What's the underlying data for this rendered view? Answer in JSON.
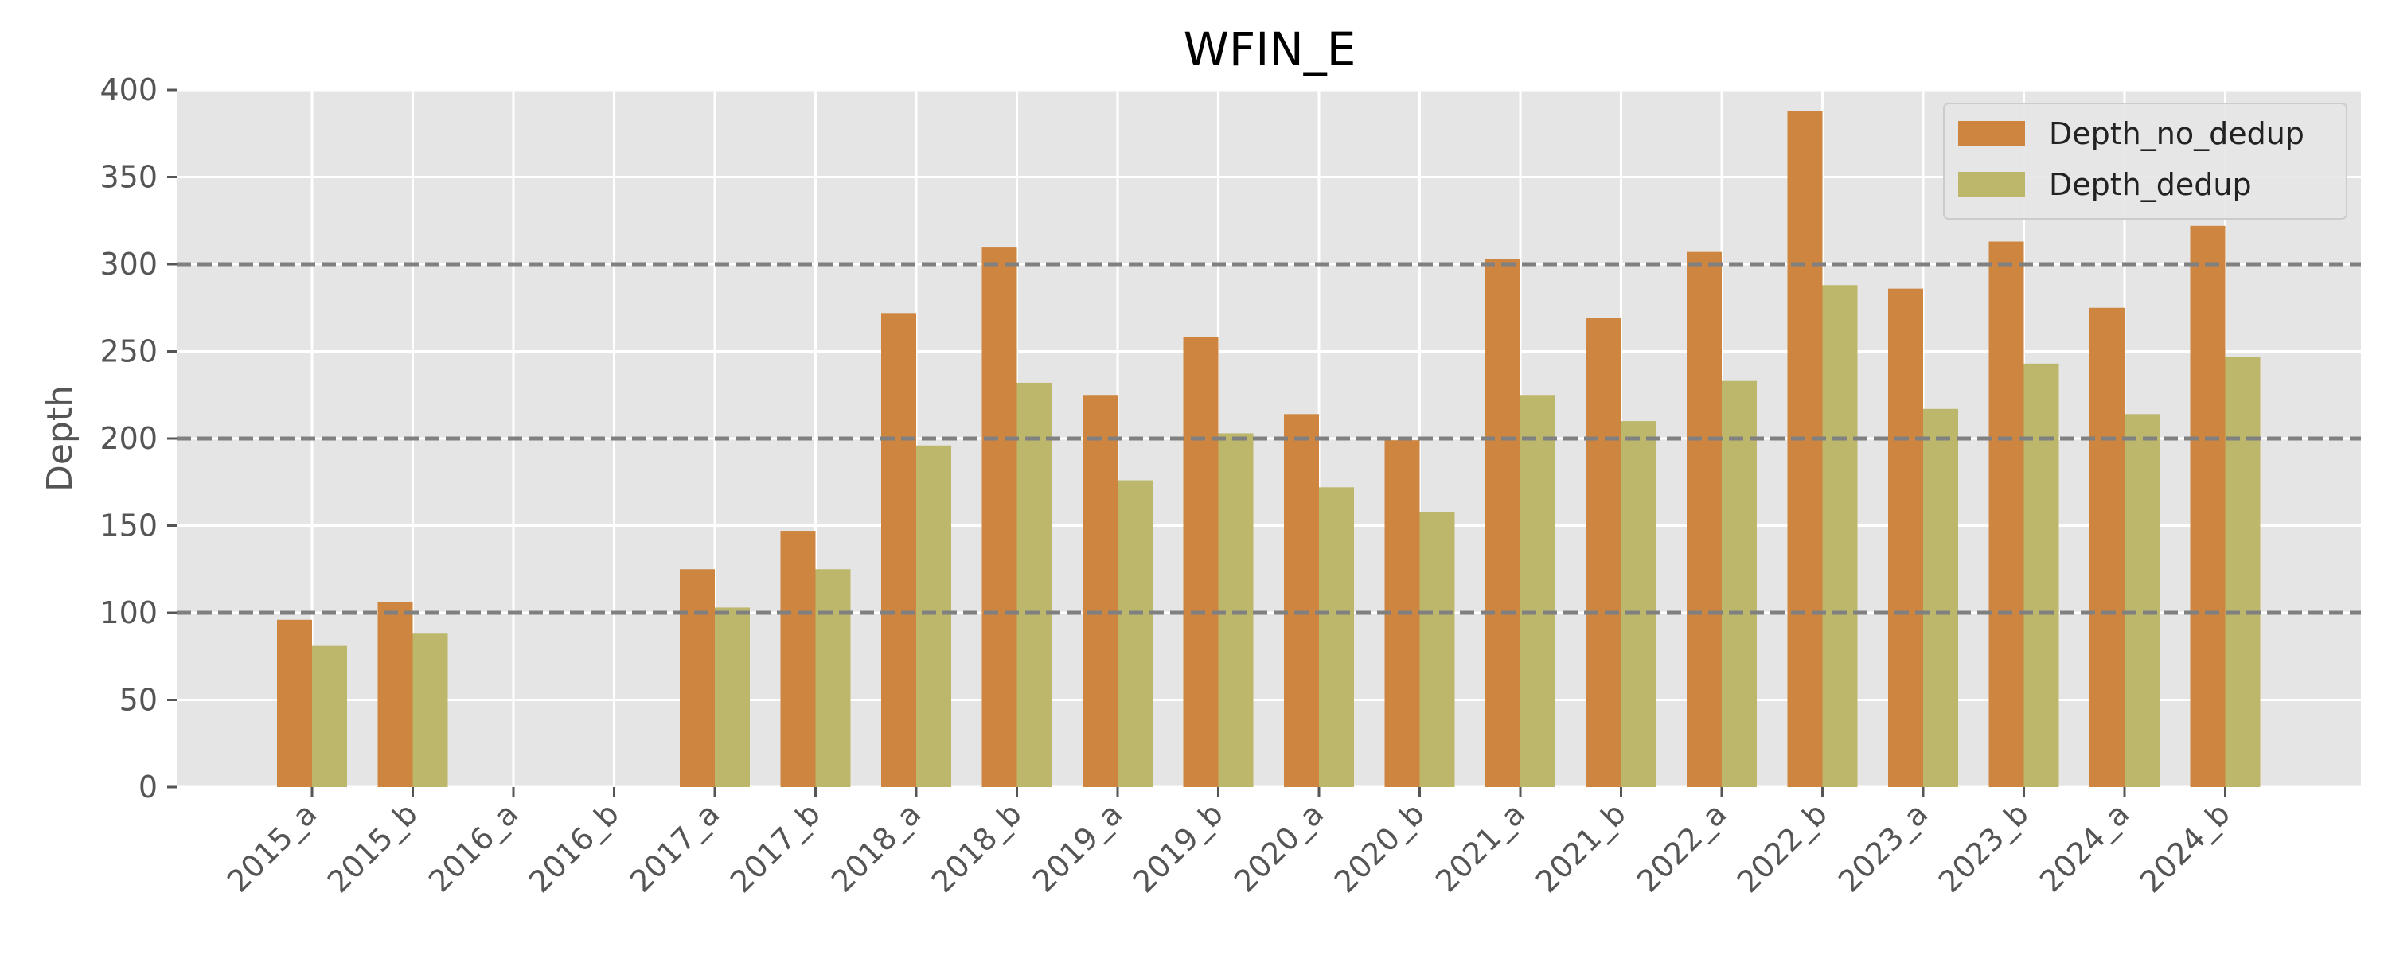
{
  "chart_data": {
    "type": "bar",
    "title": "WFIN_E",
    "xlabel": "",
    "ylabel": "Depth",
    "ylim": [
      0,
      400
    ],
    "yticks": [
      0,
      50,
      100,
      150,
      200,
      250,
      300,
      350,
      400
    ],
    "grid": true,
    "legend_position": "top-right",
    "reference_lines": [
      100,
      200,
      300
    ],
    "categories": [
      "2015_a",
      "2015_b",
      "2016_a",
      "2016_b",
      "2017_a",
      "2017_b",
      "2018_a",
      "2018_b",
      "2019_a",
      "2019_b",
      "2020_a",
      "2020_b",
      "2021_a",
      "2021_b",
      "2022_a",
      "2022_b",
      "2023_a",
      "2023_b",
      "2024_a",
      "2024_b"
    ],
    "series": [
      {
        "name": "Depth_no_dedup",
        "color": "#cd853f",
        "values": [
          96,
          106,
          null,
          null,
          125,
          147,
          272,
          310,
          225,
          258,
          214,
          199,
          303,
          269,
          307,
          388,
          286,
          313,
          275,
          322
        ]
      },
      {
        "name": "Depth_dedup",
        "color": "#bdb76b",
        "values": [
          81,
          88,
          null,
          null,
          103,
          125,
          196,
          232,
          176,
          203,
          172,
          158,
          225,
          210,
          233,
          288,
          217,
          243,
          214,
          247
        ]
      }
    ],
    "colors": {
      "plot_background": "#e5e5e5",
      "grid": "#ffffff",
      "reference_line": "#808080",
      "text": "#555555",
      "title": "#000000"
    }
  }
}
